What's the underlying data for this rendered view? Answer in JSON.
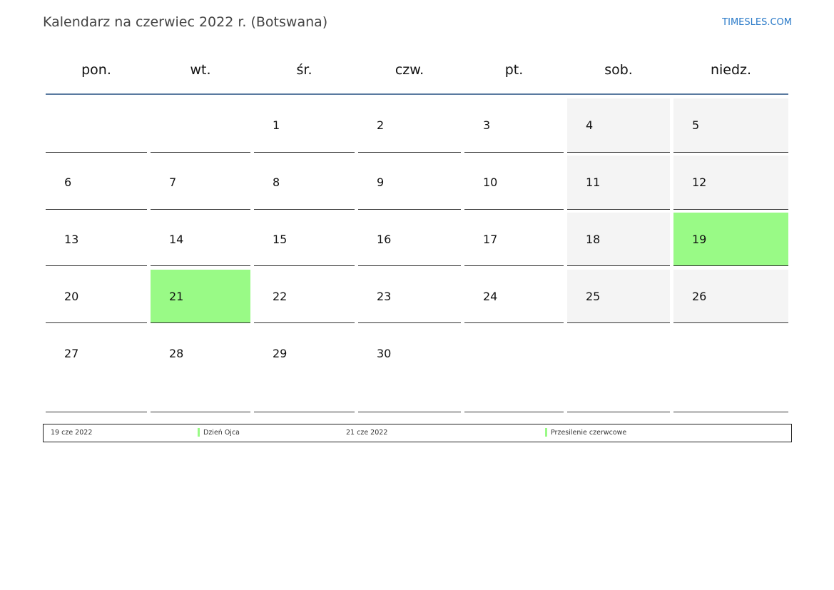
{
  "title": "Kalendarz na czerwiec 2022 r. (Botswana)",
  "brand": "TIMESLES.COM",
  "weekdays": [
    "pon.",
    "wt.",
    "śr.",
    "czw.",
    "pt.",
    "sob.",
    "niedz."
  ],
  "weeks": [
    [
      null,
      null,
      1,
      2,
      3,
      4,
      5
    ],
    [
      6,
      7,
      8,
      9,
      10,
      11,
      12
    ],
    [
      13,
      14,
      15,
      16,
      17,
      18,
      19
    ],
    [
      20,
      21,
      22,
      23,
      24,
      25,
      26
    ],
    [
      27,
      28,
      29,
      30,
      null,
      null,
      null
    ]
  ],
  "holiday_days": [
    19,
    21
  ],
  "colors": {
    "holiday": "#99fa86",
    "weekend": "#f4f4f4",
    "header_line": "#5a7aa0"
  },
  "legend": [
    {
      "date": "19 cze 2022",
      "name": "Dzień Ojca"
    },
    {
      "date": "21 cze 2022",
      "name": "Przesilenie czerwcowe"
    }
  ]
}
